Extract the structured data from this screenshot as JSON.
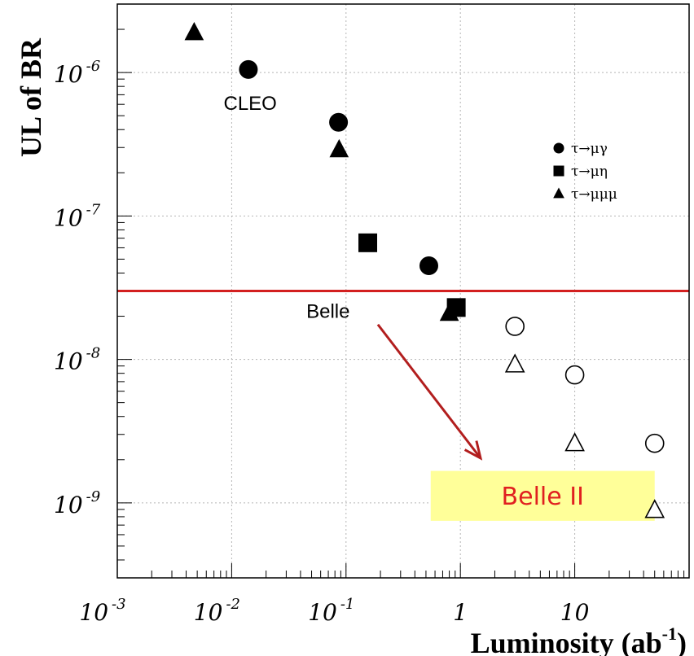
{
  "chart_data": {
    "type": "scatter",
    "xscale": "log",
    "yscale": "log",
    "xlim": [
      0.001,
      100
    ],
    "ylim": [
      3e-10,
      3e-06
    ],
    "grid": true,
    "xlabel": "Luminosity (ab",
    "xlabel_sup": "-1",
    "xlabel_end": ")",
    "ylabel": "UL of BR",
    "x_ticks": [
      {
        "value": 0.001,
        "base": "10",
        "exp": "-3"
      },
      {
        "value": 0.01,
        "base": "10",
        "exp": "-2"
      },
      {
        "value": 0.1,
        "base": "10",
        "exp": "-1"
      },
      {
        "value": 1,
        "base": "1",
        "exp": ""
      },
      {
        "value": 10,
        "base": "10",
        "exp": ""
      }
    ],
    "y_ticks": [
      {
        "value": 1e-06,
        "base": "10",
        "exp": "-6"
      },
      {
        "value": 1e-07,
        "base": "10",
        "exp": "-7"
      },
      {
        "value": 1e-08,
        "base": "10",
        "exp": "-8"
      },
      {
        "value": 1e-09,
        "base": "10",
        "exp": "-9"
      }
    ],
    "legend": {
      "position": "top-right",
      "entries": [
        {
          "marker": "circle",
          "label": "τ→μγ"
        },
        {
          "marker": "square",
          "label": "τ→μη"
        },
        {
          "marker": "triangle",
          "label": "τ→μμμ"
        }
      ]
    },
    "series": [
      {
        "name": "τ→μγ",
        "marker": "circle",
        "filled": true,
        "x": [
          0.014,
          0.086,
          0.53
        ],
        "y": [
          1.05e-06,
          4.5e-07,
          4.5e-08
        ]
      },
      {
        "name": "τ→μη",
        "marker": "square",
        "filled": true,
        "x": [
          0.155,
          0.92
        ],
        "y": [
          6.5e-08,
          2.3e-08
        ]
      },
      {
        "name": "τ→μμμ",
        "marker": "triangle",
        "filled": true,
        "x": [
          0.0047,
          0.087,
          0.8
        ],
        "y": [
          1.9e-06,
          2.9e-07,
          2.1e-08
        ]
      },
      {
        "name": "τ→μγ",
        "marker": "circle",
        "filled": false,
        "x": [
          3,
          10,
          50
        ],
        "y": [
          1.7e-08,
          7.8e-09,
          2.6e-09
        ]
      },
      {
        "name": "τ→μμμ",
        "marker": "triangle",
        "filled": false,
        "x": [
          3,
          10,
          50
        ],
        "y": [
          9.2e-09,
          2.6e-09,
          8.9e-10
        ]
      }
    ],
    "reference_line": {
      "y": 3e-08,
      "color": "#d32020"
    },
    "annotations": [
      {
        "text": "CLEO",
        "x": 0.0085,
        "y": 5.5e-07
      },
      {
        "text": "Belle",
        "x": 0.045,
        "y": 1.95e-08
      }
    ],
    "arrow": {
      "x1": 0.19,
      "y1": 1.75e-08,
      "x2": 1.5,
      "y2": 2.05e-09,
      "color": "#b21e1e"
    },
    "callout": {
      "text": "Belle II",
      "x1": 0.55,
      "x2": 50,
      "y1": 1.67e-09,
      "y2": 7.5e-10,
      "fill": "#ffff99",
      "text_color": "#e02020"
    }
  }
}
